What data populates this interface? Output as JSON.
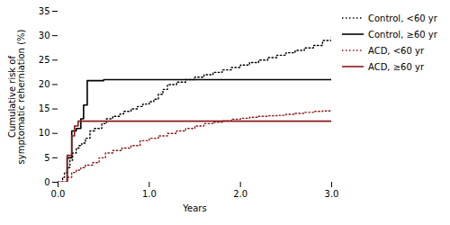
{
  "chart_data": {
    "type": "step",
    "xlabel": "Years",
    "ylabel": "Cumulative risk of\nsymptomatic reherniation (%)",
    "xlim": [
      0,
      3
    ],
    "ylim": [
      0,
      35
    ],
    "xticks": [
      0,
      1,
      2,
      3
    ],
    "yticks": [
      0,
      5,
      10,
      15,
      20,
      25,
      30,
      35
    ],
    "grid": false,
    "legend": "right",
    "series": [
      {
        "name": "Control, <60 yr",
        "color": "#000000",
        "line_style": "dotted",
        "x": [
          0,
          0.05,
          0.07,
          0.1,
          0.13,
          0.16,
          0.2,
          0.23,
          0.26,
          0.3,
          0.35,
          0.4,
          0.48,
          0.53,
          0.6,
          0.68,
          0.72,
          0.8,
          0.87,
          0.93,
          1.0,
          1.05,
          1.1,
          1.15,
          1.2,
          1.3,
          1.4,
          1.5,
          1.6,
          1.7,
          1.8,
          1.9,
          2.0,
          2.1,
          2.2,
          2.3,
          2.4,
          2.5,
          2.6,
          2.7,
          2.8,
          2.9,
          3.0
        ],
        "values": [
          0,
          1.0,
          2.0,
          3.0,
          4.5,
          6.0,
          7.0,
          7.5,
          8.0,
          9.0,
          10.5,
          11.0,
          12.0,
          13.0,
          13.5,
          14.0,
          14.5,
          15.0,
          15.5,
          16.0,
          16.5,
          17.0,
          18.0,
          19.0,
          20.0,
          20.5,
          21.0,
          21.5,
          22.0,
          22.5,
          23.0,
          23.5,
          24.0,
          24.5,
          25.0,
          25.5,
          26.0,
          26.5,
          27.0,
          27.5,
          28.0,
          29.0,
          30.2
        ]
      },
      {
        "name": "Control, ≥60 yr",
        "color": "#000000",
        "line_style": "solid",
        "x": [
          0,
          0.1,
          0.15,
          0.2,
          0.25,
          0.28,
          0.32,
          0.5,
          3.0
        ],
        "values": [
          0,
          5.0,
          10.5,
          11.0,
          13.0,
          15.8,
          20.8,
          21.0,
          21.1
        ]
      },
      {
        "name": "ACD, <60 yr",
        "color": "#8B1A1A",
        "line_style": "dotted",
        "x": [
          0,
          0.1,
          0.15,
          0.2,
          0.25,
          0.3,
          0.38,
          0.45,
          0.52,
          0.6,
          0.7,
          0.8,
          0.9,
          1.0,
          1.1,
          1.2,
          1.3,
          1.4,
          1.5,
          1.6,
          1.7,
          1.8,
          1.9,
          2.0,
          2.1,
          2.2,
          2.3,
          2.4,
          2.5,
          2.6,
          2.7,
          2.8,
          2.9,
          3.0
        ],
        "values": [
          0,
          1.0,
          2.0,
          2.5,
          3.0,
          3.5,
          4.0,
          5.0,
          6.0,
          6.5,
          7.0,
          7.5,
          8.5,
          9.0,
          9.5,
          10.0,
          10.5,
          11.0,
          11.5,
          12.0,
          12.3,
          12.6,
          12.9,
          13.1,
          13.3,
          13.5,
          13.6,
          13.7,
          13.9,
          14.1,
          14.3,
          14.5,
          14.6,
          14.8
        ]
      },
      {
        "name": "ACD, ≥60 yr",
        "color": "#8B1A1A",
        "line_style": "solid",
        "x": [
          0,
          0.1,
          0.15,
          0.18,
          0.22,
          0.28,
          0.35,
          3.0
        ],
        "values": [
          0,
          5.5,
          9.5,
          11.5,
          12.5,
          12.5,
          12.5,
          12.5
        ]
      }
    ]
  }
}
